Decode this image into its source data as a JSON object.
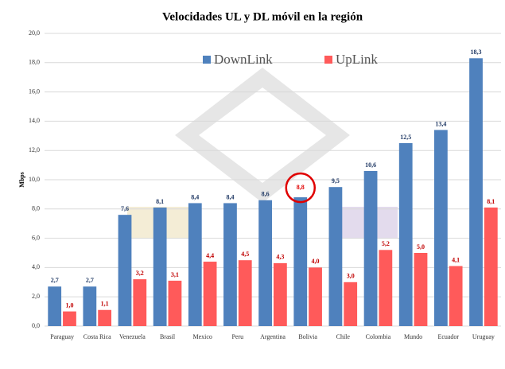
{
  "chart_data": {
    "type": "bar",
    "title": "Velocidades UL y DL móvil en la región",
    "y_label": "Mbps",
    "categories": [
      "Paraguay",
      "Costa Rica",
      "Venezuela",
      "Brasil",
      "Mexico",
      "Peru",
      "Argentina",
      "Bolivia",
      "Chile",
      "Colombia",
      "Mundo",
      "Ecuador",
      "Uruguay"
    ],
    "series": [
      {
        "name": "DownLink",
        "color": "#4f81bd",
        "label_color": "#1f3864",
        "values": [
          2.7,
          2.7,
          7.6,
          8.1,
          8.4,
          8.4,
          8.6,
          8.8,
          9.5,
          10.6,
          12.5,
          13.4,
          18.3
        ],
        "value_labels": [
          "2,7",
          "2,7",
          "7,6",
          "8,1",
          "8,4",
          "8,4",
          "8,6",
          "8,8",
          "9,5",
          "10,6",
          "12,5",
          "13,4",
          "18,3"
        ]
      },
      {
        "name": "UpLink",
        "color": "#ff5a5a",
        "label_color": "#c00000",
        "values": [
          1.0,
          1.1,
          3.2,
          3.1,
          4.4,
          4.5,
          4.3,
          4.0,
          3.0,
          5.2,
          5.0,
          4.1,
          8.1
        ],
        "value_labels": [
          "1,0",
          "1,1",
          "3,2",
          "3,1",
          "4,4",
          "4,5",
          "4,3",
          "4,0",
          "3,0",
          "5,2",
          "5,0",
          "4,1",
          "8,1"
        ]
      }
    ],
    "highlight": "Bolivia",
    "ylim": [
      0,
      20
    ],
    "yticks": [
      {
        "value": 0,
        "label": "0,0"
      },
      {
        "value": 2,
        "label": "2,0"
      },
      {
        "value": 4,
        "label": "4,0"
      },
      {
        "value": 6,
        "label": "6,0"
      },
      {
        "value": 8,
        "label": "8,0"
      },
      {
        "value": 10,
        "label": "10,0"
      },
      {
        "value": 12,
        "label": "12,0"
      },
      {
        "value": 14,
        "label": "14,0"
      },
      {
        "value": 16,
        "label": "16,0"
      },
      {
        "value": 18,
        "label": "18,0"
      },
      {
        "value": 20,
        "label": "20,0"
      }
    ],
    "grid": true,
    "legend": "top"
  }
}
